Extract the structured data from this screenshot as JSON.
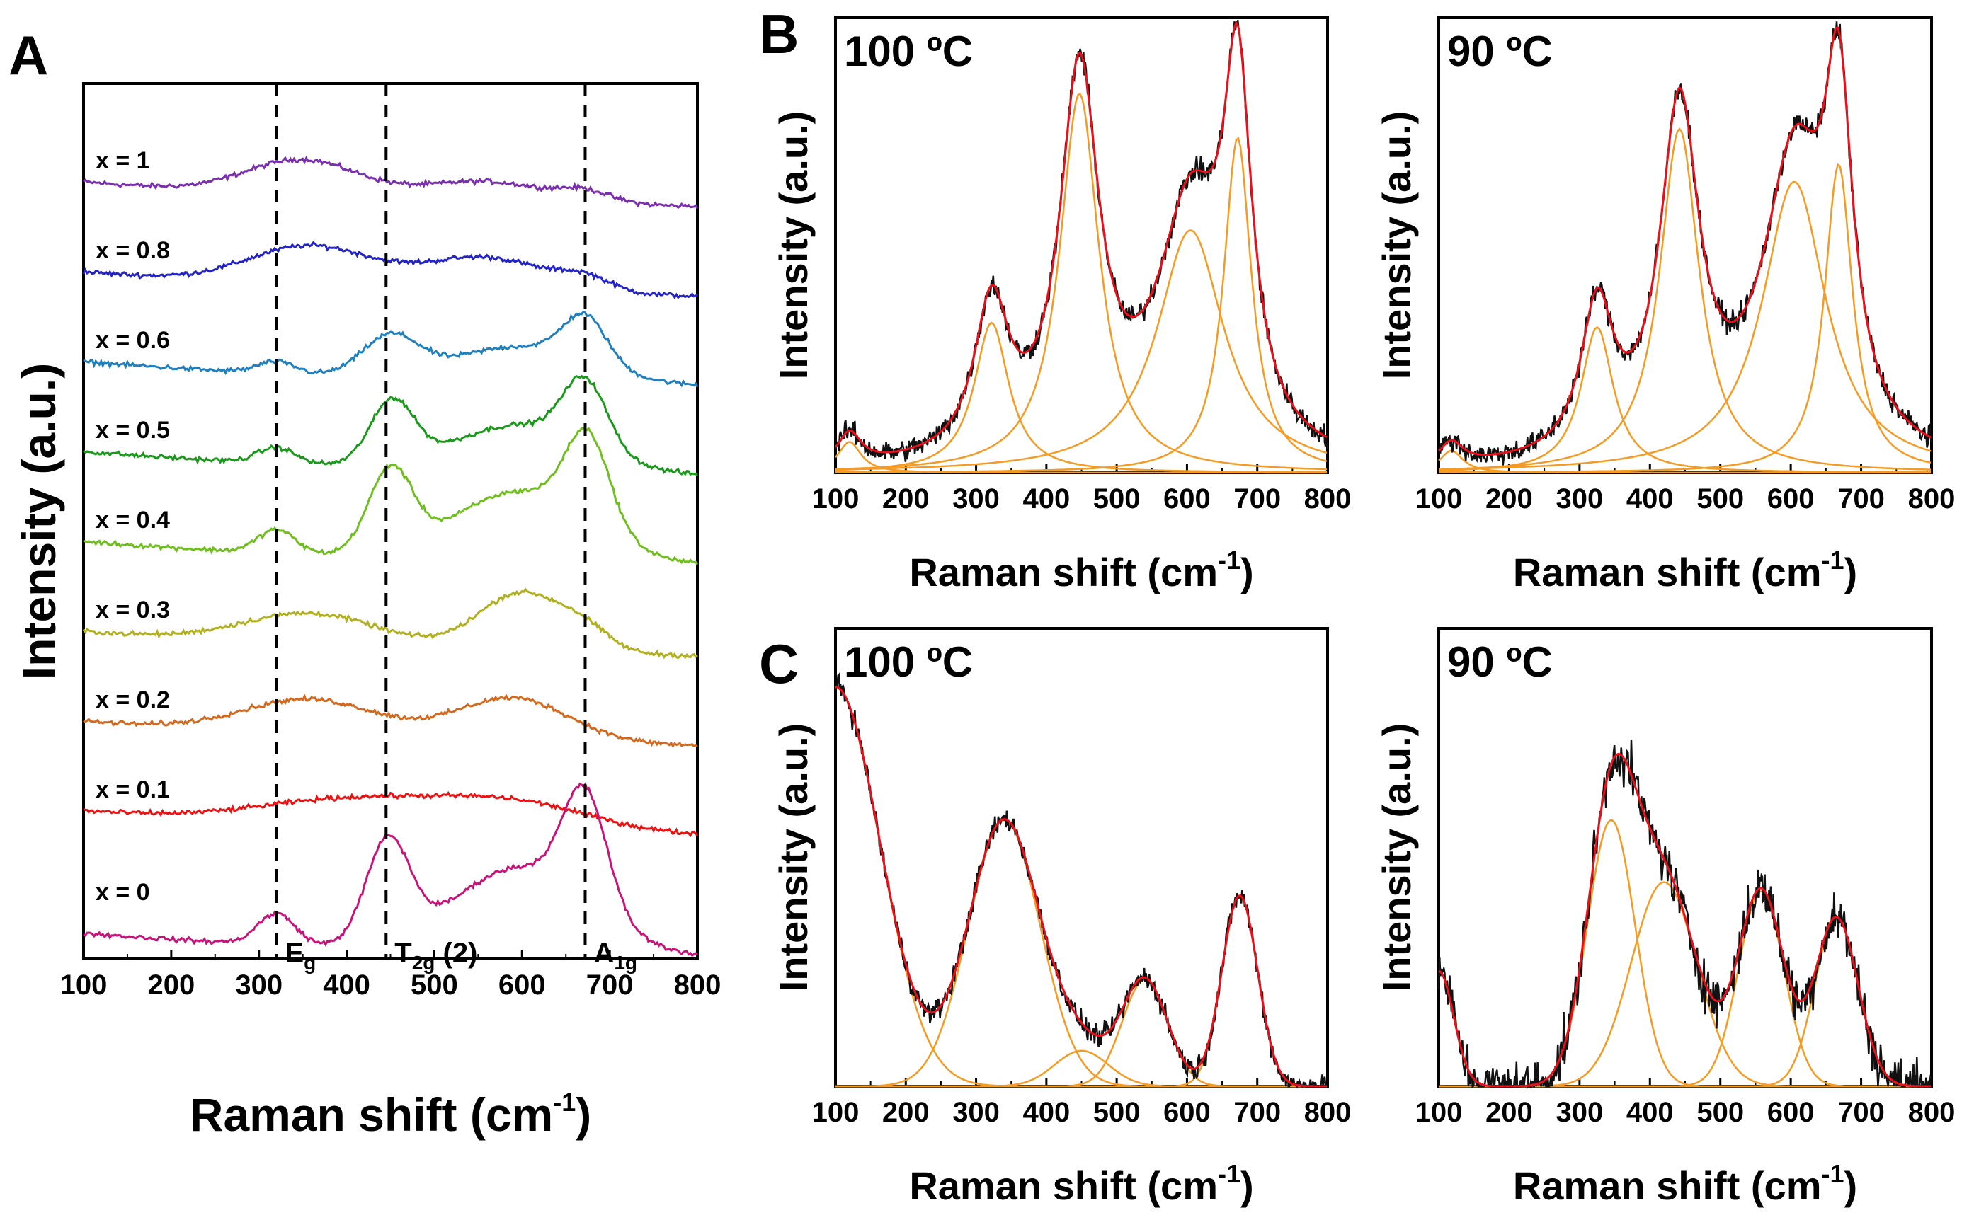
{
  "chart_data": [
    {
      "panel": "A",
      "type": "line",
      "xlabel": "Raman shift (cm-1)",
      "xlabel_main": "Raman shift (cm",
      "xlabel_sup": "-1",
      "xlabel_close": ")",
      "ylabel": "Intensity (a.u.)",
      "xlim": [
        100,
        800
      ],
      "xticks": [
        "100",
        "200",
        "300",
        "400",
        "500",
        "600",
        "700",
        "800"
      ],
      "stacked": true,
      "vlines": [
        {
          "x": 320,
          "label_main": "E",
          "label_sub": "g"
        },
        {
          "x": 445,
          "label_main": "T",
          "label_sub": "2g",
          "label_rest": " (2)"
        },
        {
          "x": 672,
          "label_main": "A",
          "label_sub": "1g"
        }
      ],
      "series": [
        {
          "name": "x = 1",
          "color": "#7b2fb0",
          "peaks": [
            [
              350,
              0.9,
              90
            ],
            [
              560,
              0.5,
              100
            ],
            [
              672,
              0.25,
              40
            ]
          ]
        },
        {
          "name": "x = 0.8",
          "color": "#2323c8",
          "peaks": [
            [
              360,
              1.0,
              100
            ],
            [
              560,
              0.85,
              100
            ],
            [
              672,
              0.3,
              40
            ]
          ]
        },
        {
          "name": "x = 0.6",
          "color": "#1f7fbf",
          "peaks": [
            [
              320,
              0.3,
              30
            ],
            [
              450,
              1.0,
              45
            ],
            [
              600,
              0.9,
              110
            ],
            [
              672,
              1.2,
              35
            ]
          ]
        },
        {
          "name": "x = 0.5",
          "color": "#1a9a1a",
          "peaks": [
            [
              320,
              0.4,
              30
            ],
            [
              452,
              1.6,
              35
            ],
            [
              600,
              1.2,
              110
            ],
            [
              672,
              1.7,
              35
            ]
          ]
        },
        {
          "name": "x = 0.4",
          "color": "#6fbf1f",
          "peaks": [
            [
              320,
              0.6,
              30
            ],
            [
              450,
              2.1,
              35
            ],
            [
              600,
              1.8,
              110
            ],
            [
              675,
              2.3,
              35
            ]
          ]
        },
        {
          "name": "x = 0.3",
          "color": "#b0b020",
          "peaks": [
            [
              360,
              0.8,
              110
            ],
            [
              600,
              1.5,
              70
            ],
            [
              672,
              0.4,
              40
            ]
          ]
        },
        {
          "name": "x = 0.2",
          "color": "#d2691e",
          "peaks": [
            [
              360,
              0.9,
              110
            ],
            [
              590,
              1.1,
              90
            ]
          ]
        },
        {
          "name": "x = 0.1",
          "color": "#ee1111",
          "peaks": [
            [
              420,
              0.7,
              160
            ],
            [
              600,
              0.6,
              120
            ]
          ]
        },
        {
          "name": "x = 0",
          "color": "#c8147a",
          "peaks": [
            [
              320,
              0.8,
              30
            ],
            [
              447,
              2.6,
              35
            ],
            [
              600,
              2.2,
              110
            ],
            [
              672,
              2.9,
              35
            ]
          ]
        }
      ]
    },
    {
      "panel": "B",
      "type": "line",
      "title": "100 ºC",
      "xlabel": "Raman shift (cm-1)",
      "xlabel_main": "Raman shift (cm",
      "xlabel_sup": "-1",
      "xlabel_close": ")",
      "ylabel": "Intensity (a.u.)",
      "xlim": [
        100,
        800
      ],
      "xticks": [
        "100",
        "200",
        "300",
        "400",
        "500",
        "600",
        "700",
        "800"
      ],
      "components": [
        [
          120,
          0.07,
          20
        ],
        [
          322,
          0.34,
          30
        ],
        [
          447,
          0.86,
          34
        ],
        [
          605,
          0.55,
          58
        ],
        [
          672,
          0.76,
          24
        ]
      ]
    },
    {
      "panel": "B",
      "type": "line",
      "title": "90 ºC",
      "xlabel": "Raman shift (cm-1)",
      "xlabel_main": "Raman shift (cm",
      "xlabel_sup": "-1",
      "xlabel_close": ")",
      "ylabel": "Intensity (a.u.)",
      "xlim": [
        100,
        800
      ],
      "xticks": [
        "100",
        "200",
        "300",
        "400",
        "500",
        "600",
        "700",
        "800"
      ],
      "components": [
        [
          118,
          0.05,
          20
        ],
        [
          325,
          0.33,
          28
        ],
        [
          442,
          0.78,
          34
        ],
        [
          605,
          0.66,
          55
        ],
        [
          668,
          0.7,
          24
        ]
      ]
    },
    {
      "panel": "C",
      "type": "line",
      "title": "100 ºC",
      "xlabel": "Raman shift (cm-1)",
      "xlabel_main": "Raman shift (cm",
      "xlabel_sup": "-1",
      "xlabel_close": ")",
      "ylabel": "Intensity (a.u.)",
      "xlim": [
        100,
        800
      ],
      "xticks": [
        "100",
        "200",
        "300",
        "400",
        "500",
        "600",
        "700",
        "800"
      ],
      "components": [
        [
          100,
          0.9,
          75
        ],
        [
          340,
          0.6,
          60
        ],
        [
          450,
          0.08,
          45
        ],
        [
          540,
          0.24,
          38
        ],
        [
          675,
          0.43,
          30
        ]
      ]
    },
    {
      "panel": "C",
      "type": "line",
      "title": "90 ºC",
      "xlabel": "Raman shift (cm-1)",
      "xlabel_main": "Raman shift (cm",
      "xlabel_sup": "-1",
      "xlabel_close": ")",
      "ylabel": "Intensity (a.u.)",
      "xlim": [
        100,
        800
      ],
      "xticks": [
        "100",
        "200",
        "300",
        "400",
        "500",
        "600",
        "700",
        "800"
      ],
      "components": [
        [
          100,
          0.26,
          25
        ],
        [
          345,
          0.6,
          40
        ],
        [
          420,
          0.46,
          55
        ],
        [
          558,
          0.44,
          38
        ],
        [
          665,
          0.38,
          36
        ]
      ]
    }
  ],
  "panel_letters": [
    "A",
    "B",
    "C"
  ],
  "colors": {
    "fit_total": "#e8101a",
    "fit_component": "#f59a23",
    "data": "#111111",
    "axes": "#000000",
    "vlines": "#000000"
  }
}
